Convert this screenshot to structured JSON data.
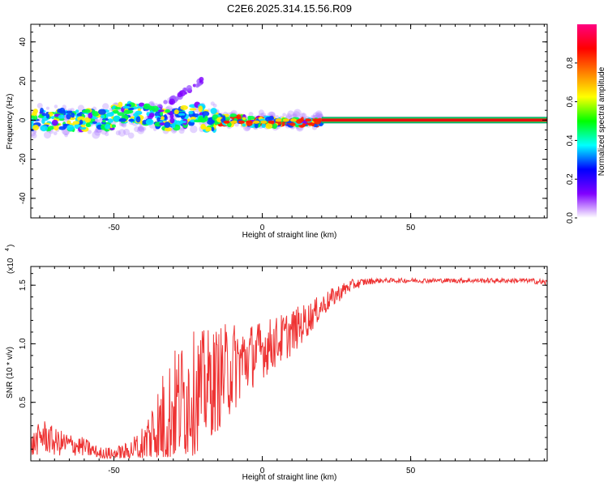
{
  "chart_data": [
    {
      "type": "heatmap",
      "title": "C2E6.2025.314.15.56.R09",
      "xlabel": "Height of straight line (km)",
      "ylabel": "Frequency (Hz)",
      "xlim": [
        -78,
        96
      ],
      "ylim": [
        -50,
        49
      ],
      "xticks": [
        "-50",
        "0",
        "50"
      ],
      "yticks": [
        "-40",
        "-20",
        "0",
        "20",
        "40"
      ],
      "colorbar": {
        "label": "Normalized spectral amplitude",
        "range": [
          0,
          1
        ],
        "ticks": [
          "0.0",
          "0.2",
          "0.4",
          "0.6",
          "0.8"
        ],
        "colors": [
          "#ffffff",
          "#8000ff",
          "#0000ff",
          "#00ffff",
          "#00ff00",
          "#ffff00",
          "#ff8000",
          "#ff0000",
          "#ff0080"
        ]
      },
      "grid": false,
      "features": {
        "band_x": [
          -78,
          20
        ],
        "steady_line_x": [
          20,
          96
        ],
        "steady_line_freq": 0,
        "branch": {
          "x": [
            -38,
            -20
          ],
          "freq": [
            3,
            20
          ]
        },
        "colors": [
          "#8000ff",
          "#00ffff",
          "#00ff00",
          "#ff0000",
          "#0a8a6a"
        ]
      }
    },
    {
      "type": "line",
      "xlabel": "Height of straight line (km)",
      "ylabel": "SNR (10 * v/v)",
      "multiplier": "(x10",
      "multiplier_exp": "4",
      "xlim": [
        -78,
        96
      ],
      "ylim": [
        0,
        1.66
      ],
      "xticks": [
        "-50",
        "0",
        "50"
      ],
      "yticks": [
        "0.5",
        "1.0",
        "1.5"
      ],
      "grid": false,
      "color": "#ee3333",
      "envelope": {
        "x": [
          -78,
          -74,
          -70,
          -60,
          -55,
          -50,
          -45,
          -40,
          -35,
          -30,
          -25,
          -20,
          -15,
          -10,
          -5,
          0,
          5,
          10,
          15,
          20,
          25,
          30,
          35,
          40,
          45,
          50,
          60,
          70,
          80,
          90,
          96
        ],
        "mid": [
          0.12,
          0.22,
          0.16,
          0.12,
          0.06,
          0.06,
          0.08,
          0.15,
          0.3,
          0.45,
          0.55,
          0.62,
          0.7,
          0.8,
          0.88,
          0.95,
          1.02,
          1.1,
          1.2,
          1.32,
          1.42,
          1.5,
          1.53,
          1.54,
          1.54,
          1.54,
          1.54,
          1.54,
          1.54,
          1.54,
          1.52
        ],
        "amp": [
          0.1,
          0.15,
          0.12,
          0.08,
          0.06,
          0.06,
          0.08,
          0.18,
          0.4,
          0.5,
          0.55,
          0.5,
          0.45,
          0.4,
          0.3,
          0.25,
          0.22,
          0.2,
          0.15,
          0.1,
          0.08,
          0.05,
          0.03,
          0.02,
          0.02,
          0.02,
          0.02,
          0.02,
          0.02,
          0.02,
          0.03
        ]
      }
    }
  ]
}
